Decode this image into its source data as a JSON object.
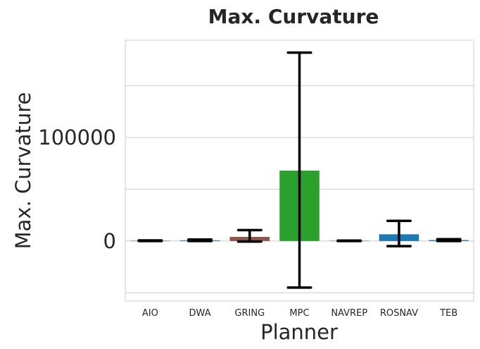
{
  "chart_data": {
    "type": "bar",
    "title": "Max. Curvature",
    "xlabel": "Planner",
    "ylabel": "Max. Curvature",
    "categories": [
      "AIO",
      "DWA",
      "GRING",
      "MPC",
      "NAVREP",
      "ROSNAV",
      "TEB"
    ],
    "values": [
      300,
      700,
      4000,
      68000,
      200,
      6500,
      900
    ],
    "error_low": [
      0,
      0,
      -500,
      -45000,
      0,
      -5000,
      0
    ],
    "error_high": [
      600,
      1400,
      10500,
      182000,
      400,
      19500,
      1800
    ],
    "colors": [
      "#1f77b4",
      "#1f77b4",
      "#8c564b",
      "#2ca02c",
      "#1f77b4",
      "#1f77b4",
      "#1f77b4"
    ],
    "yticks": [
      0,
      100000
    ],
    "ytick_labels": [
      "0",
      "100000"
    ],
    "ylim": [
      -58000,
      194000
    ],
    "grid": true,
    "gridlines": [
      -50000,
      0,
      50000,
      100000,
      150000
    ]
  }
}
